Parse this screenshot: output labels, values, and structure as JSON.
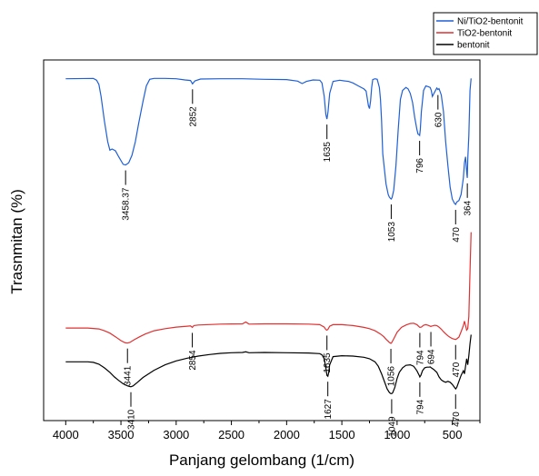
{
  "chart_data": {
    "type": "line",
    "xlabel": "Panjang gelombang (1/cm)",
    "ylabel": "Trasnmitan (%)",
    "xlim": [
      4200,
      250
    ],
    "x_ticks": [
      4000,
      3500,
      3000,
      2500,
      2000,
      1500,
      1000,
      500
    ],
    "x_reversed": true,
    "y_ticks_shown": false,
    "grid": false,
    "legend": {
      "placement": "top-right",
      "entries": [
        {
          "name": "Ni/TiO2-bentonit",
          "color": "#1f5fd6"
        },
        {
          "name": "TiO2-bentonit",
          "color": "#e03030"
        },
        {
          "name": "bentonit",
          "color": "#000000"
        }
      ]
    },
    "series": [
      {
        "name": "Ni/TiO2-bentonit",
        "color": "#1f5fd6",
        "x": [
          4000,
          3750,
          3720,
          3700,
          3680,
          3650,
          3620,
          3600,
          3580,
          3550,
          3520,
          3480,
          3458,
          3430,
          3400,
          3370,
          3340,
          3300,
          3270,
          3240,
          3200,
          3100,
          3000,
          2920,
          2870,
          2852,
          2830,
          2780,
          2600,
          2400,
          2200,
          2000,
          1900,
          1860,
          1820,
          1760,
          1700,
          1680,
          1660,
          1645,
          1635,
          1625,
          1610,
          1580,
          1520,
          1480,
          1440,
          1400,
          1350,
          1300,
          1280,
          1260,
          1250,
          1240,
          1230,
          1220,
          1200,
          1180,
          1160,
          1150,
          1140,
          1130,
          1100,
          1080,
          1070,
          1060,
          1053,
          1045,
          1030,
          1010,
          990,
          970,
          950,
          920,
          900,
          880,
          860,
          840,
          820,
          810,
          800,
          796,
          790,
          780,
          760,
          740,
          720,
          700,
          690,
          680,
          660,
          640,
          630,
          620,
          600,
          580,
          560,
          540,
          520,
          500,
          480,
          470,
          460,
          440,
          420,
          400,
          390,
          380,
          370,
          364,
          360,
          350,
          340,
          330
        ],
        "y": [
          98.9,
          99.0,
          98.4,
          97.0,
          93.0,
          85.0,
          78.0,
          75.2,
          75.6,
          75.0,
          73.0,
          70.5,
          70.3,
          71.0,
          73.5,
          78.0,
          84.0,
          91.5,
          96.5,
          98.7,
          99.0,
          99.0,
          98.9,
          98.5,
          98.3,
          97.2,
          98.2,
          98.8,
          98.9,
          98.9,
          98.7,
          98.6,
          98.1,
          97.3,
          98.0,
          98.5,
          98.4,
          97.5,
          93.0,
          87.0,
          85.5,
          88.0,
          94.0,
          98.0,
          98.4,
          98.2,
          98.0,
          97.5,
          96.5,
          95.5,
          94.8,
          90.0,
          89.0,
          91.5,
          96.0,
          98.6,
          98.9,
          98.7,
          96.0,
          92.0,
          85.0,
          74.0,
          64.0,
          60.5,
          59.6,
          59.2,
          59.0,
          59.5,
          62.0,
          70.0,
          82.0,
          92.0,
          95.0,
          96.0,
          95.5,
          94.0,
          91.0,
          86.0,
          82.0,
          80.5,
          80.3,
          80.1,
          82.0,
          88.0,
          95.0,
          96.5,
          96.3,
          96.0,
          95.0,
          93.0,
          94.5,
          95.8,
          95.3,
          95.6,
          93.5,
          88.0,
          78.0,
          70.0,
          63.0,
          59.0,
          57.5,
          57.2,
          58.0,
          58.5,
          60.5,
          66.0,
          71.0,
          73.0,
          68.0,
          66.0,
          72.0,
          80.0,
          95.0,
          99.0
        ]
      },
      {
        "name": "TiO2-bentonit",
        "color": "#e03030",
        "x": [
          4000,
          3800,
          3700,
          3650,
          3600,
          3550,
          3500,
          3460,
          3441,
          3420,
          3380,
          3330,
          3280,
          3200,
          3100,
          3000,
          2900,
          2870,
          2854,
          2840,
          2800,
          2600,
          2400,
          2370,
          2340,
          2200,
          2000,
          1800,
          1700,
          1660,
          1645,
          1635,
          1625,
          1610,
          1580,
          1500,
          1400,
          1300,
          1250,
          1200,
          1150,
          1120,
          1100,
          1080,
          1070,
          1060,
          1056,
          1050,
          1030,
          1000,
          960,
          920,
          880,
          850,
          820,
          800,
          794,
          780,
          760,
          740,
          720,
          700,
          694,
          690,
          680,
          660,
          640,
          620,
          600,
          580,
          560,
          540,
          520,
          500,
          480,
          470,
          460,
          440,
          420,
          400,
          390,
          380,
          370,
          360,
          350,
          340,
          330
        ],
        "y": [
          16.2,
          16.2,
          15.9,
          15.3,
          14.5,
          13.3,
          12.0,
          11.3,
          11.2,
          11.4,
          12.3,
          13.3,
          14.2,
          15.3,
          16.0,
          16.5,
          16.8,
          16.9,
          16.4,
          17.0,
          17.2,
          17.5,
          17.6,
          18.2,
          17.5,
          17.6,
          17.6,
          17.5,
          17.3,
          16.5,
          15.7,
          15.5,
          15.8,
          16.8,
          17.3,
          17.3,
          17.0,
          16.4,
          16.0,
          15.3,
          14.2,
          13.3,
          12.5,
          11.8,
          11.4,
          11.2,
          11.1,
          11.3,
          12.6,
          14.8,
          16.4,
          17.2,
          17.7,
          17.8,
          17.3,
          16.6,
          16.4,
          16.5,
          17.1,
          17.3,
          17.1,
          16.8,
          16.7,
          16.8,
          16.9,
          17.1,
          17.0,
          16.5,
          15.8,
          15.0,
          14.3,
          13.6,
          13.1,
          12.7,
          12.5,
          12.4,
          12.6,
          13.2,
          15.0,
          17.0,
          18.5,
          17.0,
          15.5,
          16.0,
          20.0,
          35.0,
          48.0
        ]
      },
      {
        "name": "bentonit",
        "color": "#000000",
        "x": [
          4000,
          3800,
          3750,
          3700,
          3650,
          3600,
          3560,
          3520,
          3480,
          3440,
          3420,
          3410,
          3390,
          3350,
          3300,
          3200,
          3100,
          3000,
          2900,
          2800,
          2700,
          2600,
          2500,
          2400,
          2370,
          2340,
          2200,
          2000,
          1800,
          1700,
          1680,
          1660,
          1645,
          1635,
          1627,
          1620,
          1610,
          1580,
          1500,
          1400,
          1300,
          1250,
          1200,
          1170,
          1140,
          1110,
          1090,
          1070,
          1060,
          1049,
          1040,
          1020,
          1000,
          980,
          950,
          920,
          880,
          850,
          820,
          800,
          794,
          785,
          770,
          750,
          730,
          710,
          700,
          690,
          670,
          640,
          620,
          600,
          580,
          560,
          540,
          520,
          500,
          480,
          470,
          460,
          440,
          420,
          400,
          390,
          380,
          370,
          360,
          350,
          340,
          330
        ],
        "y": [
          5.0,
          5.0,
          4.8,
          4.2,
          3.0,
          1.5,
          0.0,
          -1.2,
          -2.3,
          -3.0,
          -3.2,
          -3.3,
          -3.0,
          -1.8,
          -0.2,
          2.2,
          4.0,
          5.3,
          6.2,
          6.9,
          7.4,
          7.8,
          8.0,
          8.1,
          8.3,
          8.0,
          8.1,
          8.0,
          7.9,
          7.7,
          7.3,
          6.0,
          3.0,
          0.5,
          0.2,
          1.2,
          4.0,
          6.7,
          7.0,
          6.9,
          6.5,
          6.0,
          5.0,
          3.5,
          1.0,
          -2.0,
          -4.0,
          -5.2,
          -5.5,
          -5.6,
          -5.3,
          -3.5,
          -0.5,
          1.5,
          3.0,
          3.8,
          4.0,
          3.5,
          2.0,
          0.5,
          0.0,
          0.5,
          2.0,
          3.0,
          3.2,
          3.2,
          3.3,
          3.0,
          2.5,
          1.5,
          0.0,
          -1.0,
          -1.5,
          -1.8,
          -1.5,
          -1.8,
          -2.5,
          -3.5,
          -4.0,
          -3.5,
          -1.5,
          0.5,
          2.0,
          1.0,
          3.5,
          6.0,
          4.0,
          7.0,
          11.0,
          14.0
        ]
      }
    ],
    "annotations": [
      {
        "series": "Ni/TiO2-bentonit",
        "text": "3458.37",
        "x": 3458,
        "y": 70.3
      },
      {
        "series": "Ni/TiO2-bentonit",
        "text": "2852",
        "x": 2852,
        "y": 97.2
      },
      {
        "series": "Ni/TiO2-bentonit",
        "text": "1635",
        "x": 1635,
        "y": 85.5
      },
      {
        "series": "Ni/TiO2-bentonit",
        "text": "1053",
        "x": 1053,
        "y": 59.0
      },
      {
        "series": "Ni/TiO2-bentonit",
        "text": "796",
        "x": 796,
        "y": 80.1
      },
      {
        "series": "Ni/TiO2-bentonit",
        "text": "630",
        "x": 630,
        "y": 95.3
      },
      {
        "series": "Ni/TiO2-bentonit",
        "text": "470",
        "x": 470,
        "y": 57.2
      },
      {
        "series": "Ni/TiO2-bentonit",
        "text": "364",
        "x": 364,
        "y": 66.0
      },
      {
        "series": "TiO2-bentonit",
        "text": "3441",
        "x": 3441,
        "y": 11.2
      },
      {
        "series": "TiO2-bentonit",
        "text": "2854",
        "x": 2854,
        "y": 16.4
      },
      {
        "series": "TiO2-bentonit",
        "text": "1635",
        "x": 1635,
        "y": 15.5
      },
      {
        "series": "TiO2-bentonit",
        "text": "1056",
        "x": 1056,
        "y": 11.1
      },
      {
        "series": "TiO2-bentonit",
        "text": "794",
        "x": 794,
        "y": 16.4
      },
      {
        "series": "TiO2-bentonit",
        "text": "694",
        "x": 694,
        "y": 16.7
      },
      {
        "series": "TiO2-bentonit",
        "text": "470",
        "x": 470,
        "y": 12.4
      },
      {
        "series": "bentonit",
        "text": "3410",
        "x": 3410,
        "y": -3.3
      },
      {
        "series": "bentonit",
        "text": "1627",
        "x": 1627,
        "y": 0.2
      },
      {
        "series": "bentonit",
        "text": "1049",
        "x": 1049,
        "y": -5.6
      },
      {
        "series": "bentonit",
        "text": "794",
        "x": 794,
        "y": 0.0
      },
      {
        "series": "bentonit",
        "text": "470",
        "x": 470,
        "y": -4.0
      }
    ]
  }
}
